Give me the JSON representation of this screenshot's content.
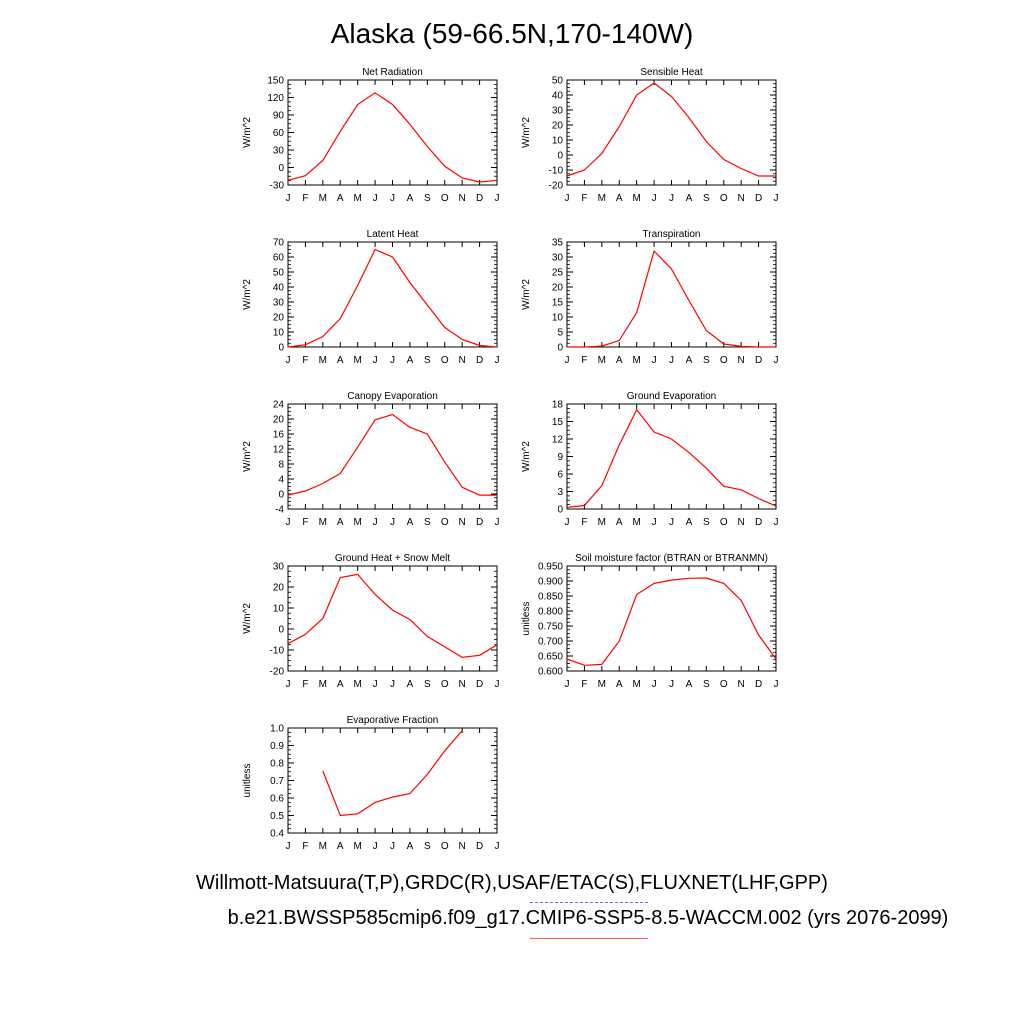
{
  "title": "Alaska (59-66.5N,170-140W)",
  "legend": {
    "obs_label": "Willmott-Matsuura(T,P),GRDC(R),USAF/ETAC(S),FLUXNET(LHF,GPP)",
    "model_label": "b.e21.BWSSP585cmip6.f09_g17.CMIP6-SSP5-8.5-WACCM.002 (yrs 2076-2099)",
    "obs_color": "#6b6bff",
    "model_color": "#ff0000"
  },
  "chart_data": [
    {
      "type": "line",
      "title": "Net Radiation",
      "ylabel": "W/m^2",
      "x": [
        "J",
        "F",
        "M",
        "A",
        "M",
        "J",
        "J",
        "A",
        "S",
        "O",
        "N",
        "D",
        "J"
      ],
      "ylim": [
        -30,
        150
      ],
      "yticks": [
        "150",
        "120",
        "90",
        "60",
        "30",
        "0",
        "-30"
      ],
      "series": [
        {
          "values": [
            -22,
            -14,
            12,
            62,
            108,
            128,
            108,
            74,
            36,
            2,
            -18,
            -25,
            -22
          ]
        }
      ]
    },
    {
      "type": "line",
      "title": "Sensible Heat",
      "ylabel": "W/m^2",
      "x": [
        "J",
        "F",
        "M",
        "A",
        "M",
        "J",
        "J",
        "A",
        "S",
        "O",
        "N",
        "D",
        "J"
      ],
      "ylim": [
        -20,
        50
      ],
      "yticks": [
        "50",
        "40",
        "30",
        "20",
        "10",
        "0",
        "-10",
        "-20"
      ],
      "series": [
        {
          "values": [
            -14,
            -10,
            1,
            19,
            40,
            48,
            39,
            25,
            9,
            -3,
            -9,
            -14,
            -14
          ]
        }
      ]
    },
    {
      "type": "line",
      "title": "Latent Heat",
      "ylabel": "W/m^2",
      "x": [
        "J",
        "F",
        "M",
        "A",
        "M",
        "J",
        "J",
        "A",
        "S",
        "O",
        "N",
        "D",
        "J"
      ],
      "ylim": [
        0,
        70
      ],
      "yticks": [
        "70",
        "60",
        "50",
        "40",
        "30",
        "20",
        "10",
        "0"
      ],
      "series": [
        {
          "values": [
            0,
            1.5,
            7,
            19,
            41,
            65,
            60,
            43,
            28,
            13,
            5,
            1,
            0
          ]
        }
      ]
    },
    {
      "type": "line",
      "title": "Transpiration",
      "ylabel": "W/m^2",
      "x": [
        "J",
        "F",
        "M",
        "A",
        "M",
        "J",
        "J",
        "A",
        "S",
        "O",
        "N",
        "D",
        "J"
      ],
      "ylim": [
        0,
        35
      ],
      "yticks": [
        "35",
        "30",
        "25",
        "20",
        "15",
        "10",
        "5",
        "0"
      ],
      "series": [
        {
          "values": [
            0,
            0,
            0.3,
            2.2,
            11.5,
            32,
            26,
            15.5,
            5.5,
            1,
            0.2,
            0,
            0
          ]
        }
      ]
    },
    {
      "type": "line",
      "title": "Canopy Evaporation",
      "ylabel": "W/m^2",
      "x": [
        "J",
        "F",
        "M",
        "A",
        "M",
        "J",
        "J",
        "A",
        "S",
        "O",
        "N",
        "D",
        "J"
      ],
      "ylim": [
        -4,
        24
      ],
      "yticks": [
        "24",
        "20",
        "16",
        "12",
        "8",
        "4",
        "0",
        "-4"
      ],
      "series": [
        {
          "values": [
            -0.3,
            0.8,
            2.8,
            5.5,
            12.5,
            19.8,
            21.2,
            17.8,
            16,
            8.5,
            1.8,
            -0.3,
            -0.3
          ]
        }
      ]
    },
    {
      "type": "line",
      "title": "Ground Evaporation",
      "ylabel": "W/m^2",
      "x": [
        "J",
        "F",
        "M",
        "A",
        "M",
        "J",
        "J",
        "A",
        "S",
        "O",
        "N",
        "D",
        "J"
      ],
      "ylim": [
        0,
        18
      ],
      "yticks": [
        "18",
        "15",
        "12",
        "9",
        "6",
        "3",
        "0"
      ],
      "series": [
        {
          "values": [
            0.3,
            0.6,
            4,
            11,
            17,
            13.2,
            12,
            9.7,
            7,
            3.9,
            3.3,
            1.8,
            0.5
          ]
        }
      ]
    },
    {
      "type": "line",
      "title": "Ground Heat + Snow Melt",
      "ylabel": "W/m^2",
      "x": [
        "J",
        "F",
        "M",
        "A",
        "M",
        "J",
        "J",
        "A",
        "S",
        "O",
        "N",
        "D",
        "J"
      ],
      "ylim": [
        -20,
        30
      ],
      "yticks": [
        "30",
        "20",
        "10",
        "0",
        "-10",
        "-20"
      ],
      "series": [
        {
          "values": [
            -7,
            -2.5,
            5,
            24.5,
            26,
            16.5,
            9,
            4.5,
            -3.5,
            -8.5,
            -13.5,
            -12.5,
            -7.5
          ]
        }
      ]
    },
    {
      "type": "line",
      "title": "Soil moisture factor (BTRAN or BTRANMN)",
      "ylabel": "unitless",
      "x": [
        "J",
        "F",
        "M",
        "A",
        "M",
        "J",
        "J",
        "A",
        "S",
        "O",
        "N",
        "D",
        "J"
      ],
      "ylim": [
        0.6,
        0.95
      ],
      "yticks": [
        "0.950",
        "0.900",
        "0.850",
        "0.800",
        "0.750",
        "0.700",
        "0.650",
        "0.600"
      ],
      "series": [
        {
          "values": [
            0.64,
            0.619,
            0.622,
            0.7,
            0.855,
            0.892,
            0.903,
            0.909,
            0.91,
            0.892,
            0.835,
            0.72,
            0.64
          ]
        }
      ]
    },
    {
      "type": "line",
      "title": "Evaporative Fraction",
      "ylabel": "unitless",
      "x": [
        "J",
        "F",
        "M",
        "A",
        "M",
        "J",
        "J",
        "A",
        "S",
        "O",
        "N",
        "D",
        "J"
      ],
      "ylim": [
        0.4,
        1.0
      ],
      "yticks": [
        "1.0",
        "0.9",
        "0.8",
        "0.7",
        "0.6",
        "0.5",
        "0.4"
      ],
      "series": [
        {
          "values": [
            null,
            null,
            0.755,
            0.5,
            0.51,
            0.575,
            0.605,
            0.625,
            0.735,
            0.87,
            0.985,
            null,
            null
          ]
        }
      ]
    }
  ]
}
